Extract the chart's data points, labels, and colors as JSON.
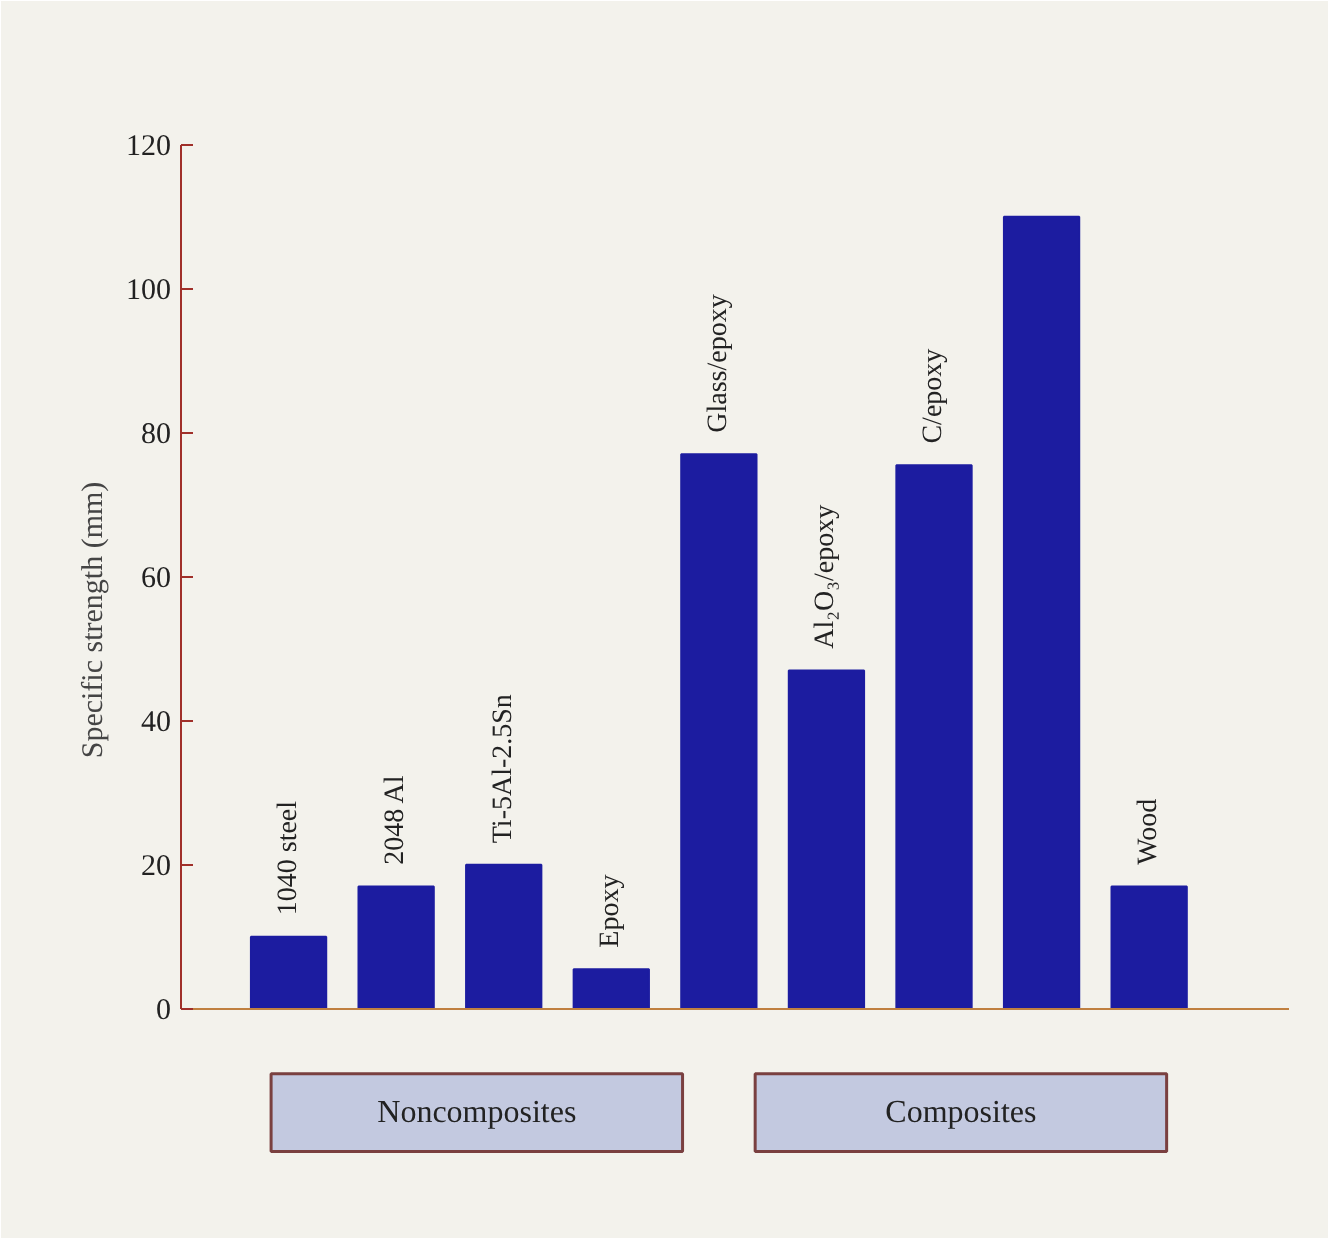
{
  "chart_data": {
    "type": "bar",
    "ylabel": "Specific strength (mm)",
    "categories": [
      "1040 steel",
      "2048 Al",
      "Ti-5Al-2.5Sn",
      "Epoxy",
      "Glass/epoxy",
      "Al₂O₃/epoxy",
      "C/epoxy",
      null,
      "Wood"
    ],
    "values": [
      10,
      17,
      20,
      5.5,
      77,
      47,
      75.5,
      110,
      17
    ],
    "color": "#1c1ca0",
    "ylim": [
      0,
      120
    ],
    "yticks": [
      0,
      20,
      40,
      60,
      80,
      100,
      120
    ],
    "grid": false,
    "tick_labels": "y",
    "annotations": [
      "Noncomposites",
      "Composites"
    ]
  }
}
